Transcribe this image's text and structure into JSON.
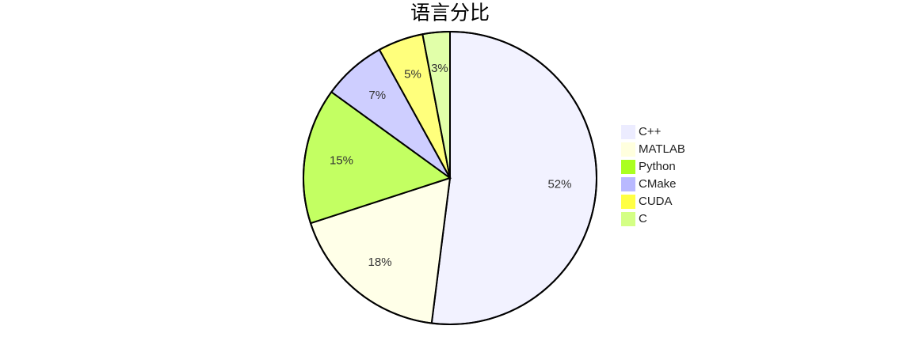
{
  "chart_data": {
    "type": "pie",
    "title": "语言分比",
    "categories": [
      "C++",
      "MATLAB",
      "Python",
      "CMake",
      "CUDA",
      "C"
    ],
    "values": [
      52,
      18,
      15,
      7,
      5,
      3
    ],
    "value_labels": [
      "52%",
      "18%",
      "15%",
      "7%",
      "5%",
      "3%"
    ],
    "colors": [
      "#ECECFF",
      "#FFFFDE",
      "#AAFF20",
      "#B9B9FF",
      "#FFFF45",
      "#D4FF85"
    ]
  }
}
